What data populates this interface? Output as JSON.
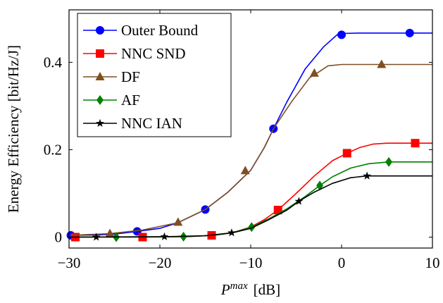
{
  "chart_data": {
    "type": "line",
    "title": "",
    "xlabel": {
      "symbol": "P",
      "superscript": "max",
      "unit": "[dB]"
    },
    "ylabel": "Energy Efficiency [bit/Hz/J]",
    "xlim": [
      -30,
      10
    ],
    "ylim": [
      -0.025,
      0.52
    ],
    "xticks": [
      -30,
      -20,
      -10,
      0,
      10
    ],
    "xtick_labels": [
      "−30",
      "−20",
      "−10",
      "0",
      "10"
    ],
    "yticks": [
      0,
      0.2,
      0.4
    ],
    "ytick_labels": [
      "0",
      "0.2",
      "0.4"
    ],
    "grid": false,
    "legend_position": "top-left",
    "series": [
      {
        "name": "Outer Bound",
        "color": "#0000ff",
        "marker": "circle",
        "line": [
          [
            -30,
            0.004
          ],
          [
            -27,
            0.005
          ],
          [
            -25,
            0.007
          ],
          [
            -22.5,
            0.013
          ],
          [
            -20,
            0.02
          ],
          [
            -18,
            0.033
          ],
          [
            -15,
            0.063
          ],
          [
            -12.5,
            0.103
          ],
          [
            -10,
            0.153
          ],
          [
            -8.5,
            0.205
          ],
          [
            -7.5,
            0.248
          ],
          [
            -6,
            0.31
          ],
          [
            -4,
            0.385
          ],
          [
            -2,
            0.435
          ],
          [
            -0.5,
            0.463
          ],
          [
            0,
            0.466
          ],
          [
            2,
            0.467
          ],
          [
            7.5,
            0.467
          ],
          [
            10,
            0.467
          ]
        ],
        "markers": [
          [
            -29.8,
            0.004
          ],
          [
            -22.5,
            0.013
          ],
          [
            -15,
            0.063
          ],
          [
            -7.5,
            0.248
          ],
          [
            0,
            0.463
          ],
          [
            7.5,
            0.467
          ]
        ]
      },
      {
        "name": "NNC SND",
        "color": "#ff0000",
        "marker": "square",
        "line": [
          [
            -30,
            0.0
          ],
          [
            -22,
            0.0
          ],
          [
            -17,
            0.001
          ],
          [
            -14.3,
            0.004
          ],
          [
            -12,
            0.01
          ],
          [
            -10,
            0.023
          ],
          [
            -8.5,
            0.04
          ],
          [
            -7,
            0.062
          ],
          [
            -5,
            0.1
          ],
          [
            -3,
            0.14
          ],
          [
            -1,
            0.175
          ],
          [
            0.6,
            0.192
          ],
          [
            2,
            0.205
          ],
          [
            3.5,
            0.213
          ],
          [
            5,
            0.215
          ],
          [
            10,
            0.215
          ]
        ],
        "markers": [
          [
            -29.3,
            0.0
          ],
          [
            -21.9,
            0.0
          ],
          [
            -14.3,
            0.004
          ],
          [
            -7,
            0.062
          ],
          [
            0.6,
            0.192
          ],
          [
            8.1,
            0.215
          ]
        ]
      },
      {
        "name": "DF",
        "color": "#7f4f21",
        "marker": "triangle",
        "line": [
          [
            -30,
            0.004
          ],
          [
            -25.5,
            0.008
          ],
          [
            -22,
            0.016
          ],
          [
            -18,
            0.033
          ],
          [
            -15,
            0.063
          ],
          [
            -12.5,
            0.103
          ],
          [
            -10,
            0.153
          ],
          [
            -8.5,
            0.205
          ],
          [
            -7.5,
            0.248
          ],
          [
            -5.5,
            0.31
          ],
          [
            -3.5,
            0.365
          ],
          [
            -2.5,
            0.378
          ],
          [
            -1.5,
            0.392
          ],
          [
            0,
            0.395
          ],
          [
            4.4,
            0.395
          ],
          [
            10,
            0.395
          ]
        ],
        "markers": [
          [
            -25.5,
            0.008
          ],
          [
            -18,
            0.034
          ],
          [
            -10.6,
            0.152
          ],
          [
            -3,
            0.375
          ],
          [
            4.4,
            0.395
          ]
        ]
      },
      {
        "name": "AF",
        "color": "#008000",
        "marker": "diamond",
        "line": [
          [
            -30,
            0.0
          ],
          [
            -17.4,
            0.001
          ],
          [
            -14,
            0.004
          ],
          [
            -12,
            0.01
          ],
          [
            -9.9,
            0.023
          ],
          [
            -8,
            0.042
          ],
          [
            -6,
            0.065
          ],
          [
            -4,
            0.093
          ],
          [
            -2.4,
            0.118
          ],
          [
            -1,
            0.138
          ],
          [
            1,
            0.158
          ],
          [
            3,
            0.168
          ],
          [
            5.2,
            0.172
          ],
          [
            10,
            0.172
          ]
        ],
        "markers": [
          [
            -24.8,
            0.0
          ],
          [
            -17.4,
            0.001
          ],
          [
            -9.9,
            0.023
          ],
          [
            -2.4,
            0.118
          ],
          [
            5.2,
            0.172
          ]
        ]
      },
      {
        "name": "NNC IAN",
        "color": "#000000",
        "marker": "star",
        "line": [
          [
            -30,
            0.0
          ],
          [
            -19.5,
            0.001
          ],
          [
            -15,
            0.003
          ],
          [
            -12,
            0.01
          ],
          [
            -10,
            0.02
          ],
          [
            -8,
            0.04
          ],
          [
            -6,
            0.062
          ],
          [
            -4.7,
            0.082
          ],
          [
            -3,
            0.103
          ],
          [
            -1,
            0.123
          ],
          [
            1,
            0.136
          ],
          [
            2.8,
            0.14
          ],
          [
            10,
            0.14
          ]
        ],
        "markers": [
          [
            -27,
            0.0
          ],
          [
            -19.5,
            0.001
          ],
          [
            -12.1,
            0.01
          ],
          [
            -4.7,
            0.082
          ],
          [
            2.8,
            0.14
          ]
        ]
      }
    ]
  }
}
